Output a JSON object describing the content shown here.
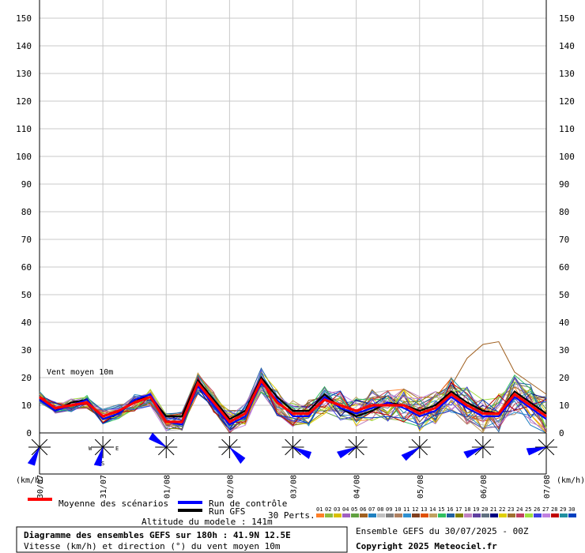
{
  "chart_data": {
    "type": "line",
    "y_ticks": [
      0,
      10,
      20,
      30,
      40,
      50,
      60,
      70,
      80,
      90,
      100,
      110,
      120,
      130,
      140,
      150
    ],
    "y_unit": "(km/h)",
    "ylim": [
      0,
      150
    ],
    "x_range_hours": [
      0,
      192
    ],
    "x_ticks": [
      {
        "label": "30/07",
        "hour": 0
      },
      {
        "label": "31/07",
        "hour": 24
      },
      {
        "label": "01/08",
        "hour": 48
      },
      {
        "label": "02/08",
        "hour": 72
      },
      {
        "label": "03/08",
        "hour": 96
      },
      {
        "label": "04/08",
        "hour": 120
      },
      {
        "label": "05/08",
        "hour": 144
      },
      {
        "label": "06/08",
        "hour": 168
      },
      {
        "label": "07/08",
        "hour": 192
      }
    ],
    "inside_label": "Vent moyen 10m",
    "wind_rose_hours": [
      0,
      24,
      48,
      72,
      96,
      120,
      144,
      168,
      192
    ],
    "compass_labels": {
      "w": "W",
      "e": "E",
      "s": "S"
    },
    "hours": [
      0,
      6,
      12,
      18,
      24,
      30,
      36,
      42,
      48,
      54,
      60,
      66,
      72,
      78,
      84,
      90,
      96,
      102,
      108,
      114,
      120,
      126,
      132,
      138,
      144,
      150,
      156,
      162,
      168,
      174,
      180,
      186,
      192
    ],
    "series": [
      {
        "name": "Moyenne des scénarios",
        "color": "#ff0000",
        "values": [
          13,
          9,
          10,
          11,
          6,
          8,
          11,
          13,
          4,
          4,
          18,
          11,
          4,
          7,
          19,
          11,
          7,
          7,
          12,
          10,
          8,
          10,
          10,
          10,
          7,
          9,
          14,
          10,
          7,
          7,
          14,
          10,
          6
        ]
      },
      {
        "name": "Run de contrôle",
        "color": "#0000ff",
        "values": [
          12,
          8,
          10,
          12,
          5,
          7,
          12,
          14,
          4,
          3,
          17,
          10,
          3,
          6,
          18,
          12,
          6,
          6,
          13,
          9,
          7,
          9,
          11,
          9,
          6,
          8,
          13,
          9,
          6,
          6,
          13,
          9,
          5
        ]
      },
      {
        "name": "Run GFS",
        "color": "#000000",
        "values": [
          12,
          8,
          11,
          12,
          5,
          7,
          12,
          13,
          6,
          6,
          19,
          12,
          5,
          8,
          20,
          13,
          8,
          8,
          14,
          9,
          6,
          8,
          11,
          10,
          8,
          10,
          15,
          11,
          8,
          7,
          15,
          11,
          7
        ]
      }
    ],
    "perturbation_colors": [
      "#ff7f27",
      "#8fbc3f",
      "#d8c000",
      "#a060c0",
      "#60a040",
      "#a06020",
      "#2080c0",
      "#c0c0c0",
      "#808080",
      "#b08060",
      "#3090d0",
      "#804020",
      "#e05000",
      "#c0a060",
      "#30c060",
      "#2060a0",
      "#808000",
      "#c080c0",
      "#6040a0",
      "#607080",
      "#000080",
      "#e0d000",
      "#a07030",
      "#c04060",
      "#a0e040",
      "#4040e0",
      "#c080e0",
      "#c00000",
      "#2090a0",
      "#0040c0"
    ],
    "wind_directions_deg": [
      200,
      190,
      300,
      130,
      110,
      240,
      230,
      240,
      250
    ]
  },
  "legend": {
    "mean": "Moyenne des scénarios",
    "control": "Run de contrôle",
    "gfs": "Run GFS",
    "perts_label": "30 Perts.",
    "pert_numbers": [
      "01",
      "02",
      "03",
      "04",
      "05",
      "06",
      "07",
      "08",
      "09",
      "10",
      "11",
      "12",
      "13",
      "14",
      "15",
      "16",
      "17",
      "18",
      "19",
      "20",
      "21",
      "22",
      "23",
      "24",
      "25",
      "26",
      "27",
      "28",
      "29",
      "30"
    ]
  },
  "footer": {
    "altitude": "Altitude du modele : 141m",
    "title": "Diagramme des ensembles GEFS sur 180h : 41.9N 12.5E",
    "subtitle": "Vitesse (km/h) et direction (°) du vent moyen 10m",
    "run": "Ensemble GEFS du 30/07/2025 - 00Z",
    "copyright": "Copyright 2025 Meteociel.fr"
  }
}
